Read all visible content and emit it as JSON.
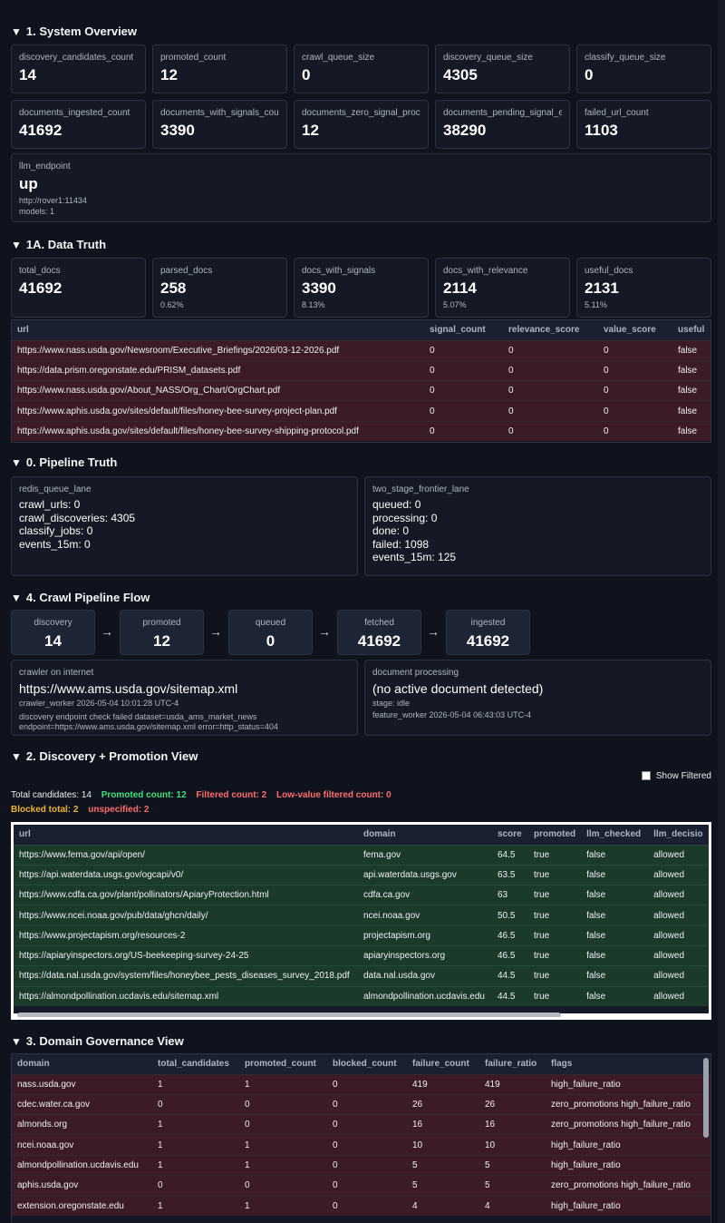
{
  "system_overview": {
    "title": "1. System Overview",
    "row1": [
      {
        "label": "discovery_candidates_count",
        "value": "14"
      },
      {
        "label": "promoted_count",
        "value": "12"
      },
      {
        "label": "crawl_queue_size",
        "value": "0"
      },
      {
        "label": "discovery_queue_size",
        "value": "4305"
      },
      {
        "label": "classify_queue_size",
        "value": "0"
      }
    ],
    "row2": [
      {
        "label": "documents_ingested_count",
        "value": "41692"
      },
      {
        "label": "documents_with_signals_count",
        "value": "3390"
      },
      {
        "label": "documents_zero_signal_processed",
        "value": "12"
      },
      {
        "label": "documents_pending_signal_extraction",
        "value": "38290"
      },
      {
        "label": "failed_url_count",
        "value": "1103"
      }
    ],
    "llm": {
      "label": "llm_endpoint",
      "value": "up",
      "endpoint": "http://rover1:11434",
      "models": "models: 1"
    }
  },
  "data_truth": {
    "title": "1A. Data Truth",
    "cards": [
      {
        "label": "total_docs",
        "value": "41692",
        "sub": ""
      },
      {
        "label": "parsed_docs",
        "value": "258",
        "sub": "0.62%"
      },
      {
        "label": "docs_with_signals",
        "value": "3390",
        "sub": "8.13%"
      },
      {
        "label": "docs_with_relevance",
        "value": "2114",
        "sub": "5.07%"
      },
      {
        "label": "useful_docs",
        "value": "2131",
        "sub": "5.11%"
      }
    ],
    "columns": [
      "url",
      "signal_count",
      "relevance_score",
      "value_score",
      "useful"
    ],
    "rows": [
      [
        "https://www.nass.usda.gov/Newsroom/Executive_Briefings/2026/03-12-2026.pdf",
        "0",
        "0",
        "0",
        "false"
      ],
      [
        "https://data.prism.oregonstate.edu/PRISM_datasets.pdf",
        "0",
        "0",
        "0",
        "false"
      ],
      [
        "https://www.nass.usda.gov/About_NASS/Org_Chart/OrgChart.pdf",
        "0",
        "0",
        "0",
        "false"
      ],
      [
        "https://www.aphis.usda.gov/sites/default/files/honey-bee-survey-project-plan.pdf",
        "0",
        "0",
        "0",
        "false"
      ],
      [
        "https://www.aphis.usda.gov/sites/default/files/honey-bee-survey-shipping-protocol.pdf",
        "0",
        "0",
        "0",
        "false"
      ]
    ]
  },
  "pipeline_truth": {
    "title": "0. Pipeline Truth",
    "redis": {
      "label": "redis_queue_lane",
      "lines": [
        "crawl_urls: 0",
        "crawl_discoveries: 4305",
        "classify_jobs: 0",
        "events_15m: 0"
      ]
    },
    "frontier": {
      "label": "two_stage_frontier_lane",
      "lines": [
        "queued: 0",
        "processing: 0",
        "done: 0",
        "failed: 1098",
        "events_15m: 125"
      ]
    }
  },
  "crawl_flow": {
    "title": "4. Crawl Pipeline Flow",
    "stages": [
      {
        "label": "discovery",
        "value": "14"
      },
      {
        "label": "promoted",
        "value": "12"
      },
      {
        "label": "queued",
        "value": "0"
      },
      {
        "label": "fetched",
        "value": "41692"
      },
      {
        "label": "ingested",
        "value": "41692"
      }
    ],
    "arrow": "→",
    "crawler": {
      "label": "crawler on internet",
      "value": "https://www.ams.usda.gov/sitemap.xml",
      "worker": "crawler_worker 2026-05-04 10:01:28 UTC-4",
      "detail1": "discovery endpoint check failed dataset=usda_ams_market_news",
      "detail2": "endpoint=https://www.ams.usda.gov/sitemap.xml error=http_status=404"
    },
    "processing": {
      "label": "document processing",
      "value": "(no active document detected)",
      "stage": "stage: idle",
      "worker": "feature_worker 2026-05-04 06:43:03 UTC-4"
    }
  },
  "discovery": {
    "title": "2. Discovery + Promotion View",
    "show_filtered": "Show Filtered",
    "total": "Total candidates: 14",
    "promoted": "Promoted count: 12",
    "filtered": "Filtered count: 2",
    "lowvalue": "Low-value filtered count: 0",
    "blocked": "Blocked total: 2",
    "unspecified": "unspecified: 2",
    "colors": {
      "promoted": "#3ee07a",
      "filtered": "#ff6b6b",
      "blocked": "#f2b233"
    },
    "columns": [
      "url",
      "domain",
      "score",
      "promoted",
      "llm_checked",
      "llm_decisio"
    ],
    "rows": [
      [
        "https://www.fema.gov/api/open/",
        "fema.gov",
        "64.5",
        "true",
        "false",
        "allowed"
      ],
      [
        "https://api.waterdata.usgs.gov/ogcapi/v0/",
        "api.waterdata.usgs.gov",
        "63.5",
        "true",
        "false",
        "allowed"
      ],
      [
        "https://www.cdfa.ca.gov/plant/pollinators/ApiaryProtection.html",
        "cdfa.ca.gov",
        "63",
        "true",
        "false",
        "allowed"
      ],
      [
        "https://www.ncei.noaa.gov/pub/data/ghcn/daily/",
        "ncei.noaa.gov",
        "50.5",
        "true",
        "false",
        "allowed"
      ],
      [
        "https://www.projectapism.org/resources-2",
        "projectapism.org",
        "46.5",
        "true",
        "false",
        "allowed"
      ],
      [
        "https://apiaryinspectors.org/US-beekeeping-survey-24-25",
        "apiaryinspectors.org",
        "46.5",
        "true",
        "false",
        "allowed"
      ],
      [
        "https://data.nal.usda.gov/system/files/honeybee_pests_diseases_survey_2018.pdf",
        "data.nal.usda.gov",
        "44.5",
        "true",
        "false",
        "allowed"
      ],
      [
        "https://almondpollination.ucdavis.edu/sitemap.xml",
        "almondpollination.ucdavis.edu",
        "44.5",
        "true",
        "false",
        "allowed"
      ]
    ]
  },
  "governance": {
    "title": "3. Domain Governance View",
    "columns": [
      "domain",
      "total_candidates",
      "promoted_count",
      "blocked_count",
      "failure_count",
      "failure_ratio",
      "flags"
    ],
    "rows": [
      [
        "nass.usda.gov",
        "1",
        "1",
        "0",
        "419",
        "419",
        "high_failure_ratio"
      ],
      [
        "cdec.water.ca.gov",
        "0",
        "0",
        "0",
        "26",
        "26",
        "zero_promotions high_failure_ratio"
      ],
      [
        "almonds.org",
        "1",
        "0",
        "0",
        "16",
        "16",
        "zero_promotions high_failure_ratio"
      ],
      [
        "ncei.noaa.gov",
        "1",
        "1",
        "0",
        "10",
        "10",
        "high_failure_ratio"
      ],
      [
        "almondpollination.ucdavis.edu",
        "1",
        "1",
        "0",
        "5",
        "5",
        "high_failure_ratio"
      ],
      [
        "aphis.usda.gov",
        "0",
        "0",
        "0",
        "5",
        "5",
        "zero_promotions high_failure_ratio"
      ],
      [
        "extension.oregonstate.edu",
        "1",
        "1",
        "0",
        "4",
        "4",
        "high_failure_ratio"
      ]
    ]
  }
}
